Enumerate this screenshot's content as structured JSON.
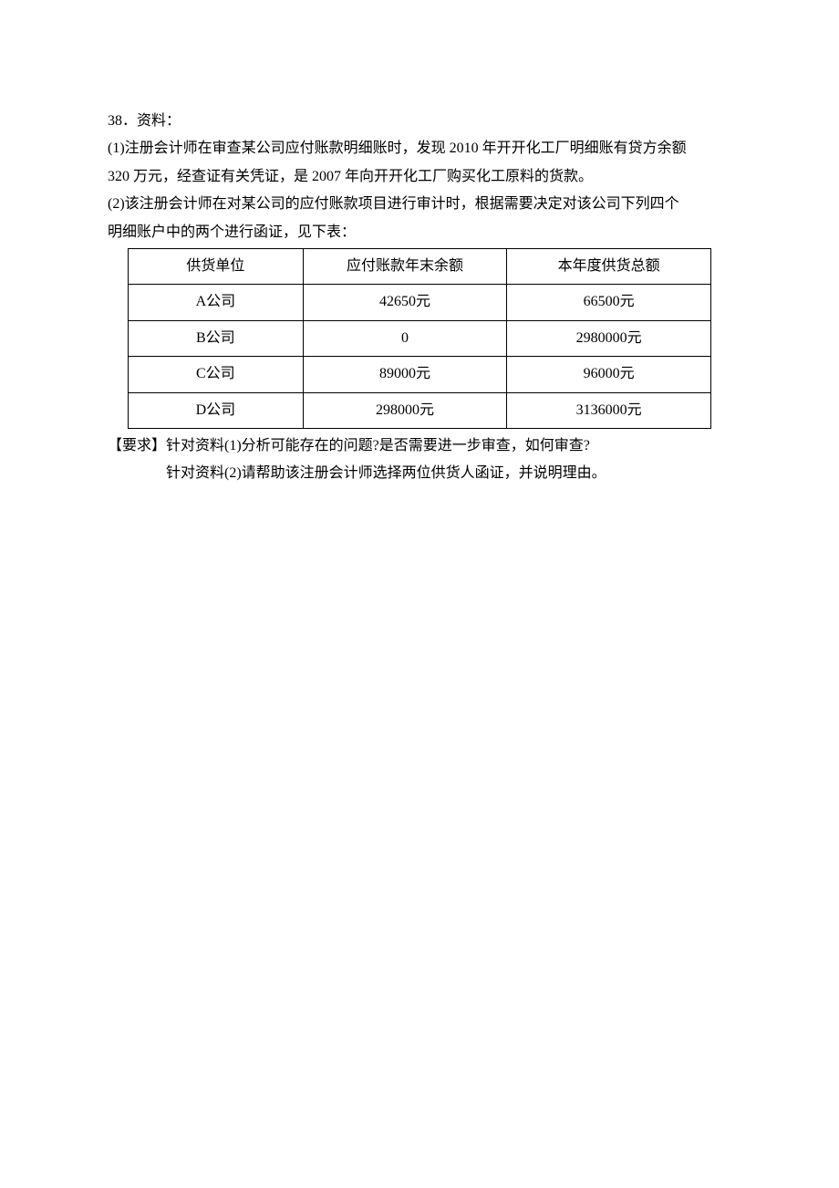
{
  "question": {
    "number_line": "38．资料：",
    "item1_line1": "(1)注册会计师在审查某公司应付账款明细账时，发现 2010 年开开化工厂明细账有贷方余额",
    "item1_line2": "320 万元，经查证有关凭证，是 2007 年向开开化工厂购买化工原料的货款。",
    "item2_line1": "(2)该注册会计师在对某公司的应付账款项目进行审计时，根据需要决定对该公司下列四个",
    "item2_line2": "明细账户中的两个进行函证，见下表："
  },
  "table": {
    "columns": [
      "供货单位",
      "应付账款年末余额",
      "本年度供货总额"
    ],
    "col_widths": [
      "30%",
      "35%",
      "35%"
    ],
    "rows": [
      [
        "A公司",
        "42650元",
        "66500元"
      ],
      [
        "B公司",
        "0",
        "2980000元"
      ],
      [
        "C公司",
        "89000元",
        "96000元"
      ],
      [
        "D公司",
        "298000元",
        "3136000元"
      ]
    ],
    "border_color": "#000000",
    "background_color": "#ffffff"
  },
  "requirements": {
    "line1": "【要求】针对资料(1)分析可能存在的问题?是否需要进一步审查，如何审查?",
    "line2": "针对资料(2)请帮助该注册会计师选择两位供货人函证，并说明理由。"
  }
}
